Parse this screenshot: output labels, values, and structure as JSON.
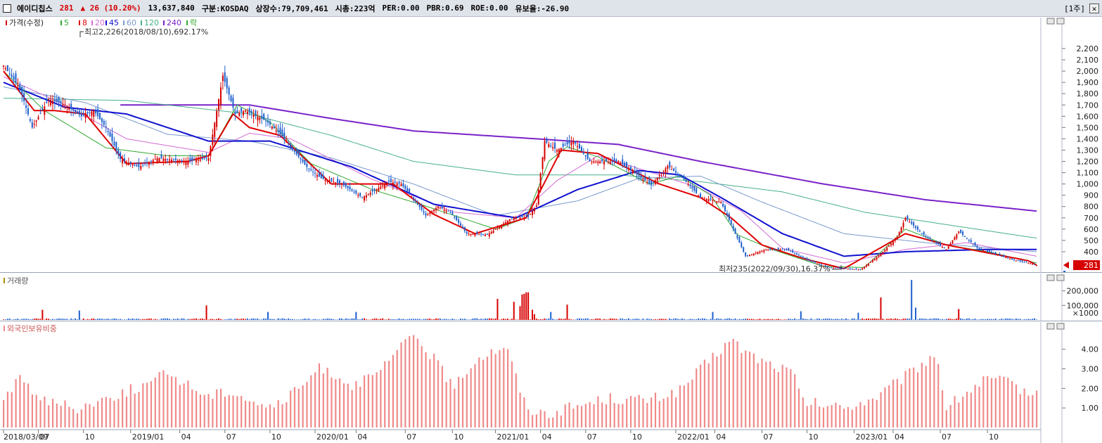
{
  "header": {
    "name": "에이디칩스",
    "price": "281",
    "change": "▲ 26 (10.20%)",
    "volume": "13,637,840",
    "market": "구분:KOSDAQ",
    "shares": "상장수:79,709,461",
    "mcap": "시총:223억",
    "per": "PER:0.00",
    "pbr": "PBR:0.69",
    "roe": "ROE:0.00",
    "retention": "유보율:-26.90",
    "period": "[1주]",
    "close": "✕"
  },
  "colors": {
    "up": "#d60000",
    "down": "#1e5fcc",
    "ma5": "#2fa82f",
    "ma8": "#e00000",
    "ma20": "#d36bd3",
    "ma45": "#1010d0",
    "ma60": "#7a9acb",
    "ma120": "#47b08a",
    "ma240": "#7a22c8",
    "foreign": "#f08a8a"
  },
  "chart_data": [
    {
      "type": "candlestick",
      "title": "가격(수정)",
      "legend": [
        "가격(수정)",
        "5",
        "8",
        "20",
        "45",
        "60",
        "120",
        "240",
        "락"
      ],
      "ylim": [
        0,
        2300
      ],
      "y_ticks": [
        "2,200",
        "2,100",
        "2,000",
        "1,900",
        "1,800",
        "1,700",
        "1,600",
        "1,500",
        "1,400",
        "1,300",
        "1,200",
        "1,100",
        "1,000",
        "900",
        "800",
        "700",
        "600",
        "500",
        "400"
      ],
      "annotations": {
        "high": "최고2,226(2018/08/10),692.17%",
        "low": "최저235(2022/09/30),16.37%"
      },
      "last": {
        "price": "281",
        "pct": "10.20%"
      },
      "anchors": {
        "close": [
          [
            0,
            2050
          ],
          [
            8,
            1850
          ],
          [
            14,
            1500
          ],
          [
            22,
            1750
          ],
          [
            30,
            1700
          ],
          [
            38,
            1600
          ],
          [
            44,
            1650
          ],
          [
            50,
            1500
          ],
          [
            57,
            1220
          ],
          [
            66,
            1150
          ],
          [
            75,
            1230
          ],
          [
            90,
            1200
          ],
          [
            100,
            1230
          ],
          [
            107,
            1960
          ],
          [
            113,
            1620
          ],
          [
            118,
            1650
          ],
          [
            128,
            1560
          ],
          [
            135,
            1440
          ],
          [
            148,
            1150
          ],
          [
            155,
            1050
          ],
          [
            165,
            1000
          ],
          [
            175,
            880
          ],
          [
            188,
            1020
          ],
          [
            194,
            1000
          ],
          [
            200,
            870
          ],
          [
            206,
            720
          ],
          [
            212,
            800
          ],
          [
            218,
            750
          ],
          [
            226,
            560
          ],
          [
            236,
            550
          ],
          [
            248,
            700
          ],
          [
            256,
            710
          ],
          [
            260,
            810
          ],
          [
            264,
            1380
          ],
          [
            270,
            1300
          ],
          [
            278,
            1380
          ],
          [
            286,
            1200
          ],
          [
            300,
            1200
          ],
          [
            316,
            990
          ],
          [
            324,
            1160
          ],
          [
            332,
            1040
          ],
          [
            340,
            880
          ],
          [
            350,
            840
          ],
          [
            362,
            360
          ],
          [
            372,
            420
          ],
          [
            382,
            420
          ],
          [
            392,
            330
          ],
          [
            402,
            260
          ],
          [
            410,
            250
          ],
          [
            418,
            240
          ],
          [
            428,
            380
          ],
          [
            436,
            530
          ],
          [
            440,
            700
          ],
          [
            448,
            560
          ],
          [
            460,
            420
          ],
          [
            466,
            580
          ],
          [
            476,
            420
          ],
          [
            484,
            380
          ],
          [
            492,
            330
          ],
          [
            500,
            300
          ],
          [
            504,
            281
          ]
        ],
        "ma5": [
          [
            0,
            2000
          ],
          [
            20,
            1650
          ],
          [
            50,
            1320
          ],
          [
            80,
            1250
          ],
          [
            100,
            1250
          ],
          [
            114,
            1700
          ],
          [
            130,
            1550
          ],
          [
            150,
            1180
          ],
          [
            180,
            950
          ],
          [
            205,
            810
          ],
          [
            240,
            600
          ],
          [
            255,
            700
          ],
          [
            266,
            1200
          ],
          [
            275,
            1330
          ],
          [
            290,
            1240
          ],
          [
            315,
            1000
          ],
          [
            330,
            1070
          ],
          [
            345,
            900
          ],
          [
            358,
            550
          ],
          [
            375,
            420
          ],
          [
            400,
            270
          ],
          [
            420,
            260
          ],
          [
            440,
            600
          ],
          [
            460,
            460
          ],
          [
            480,
            400
          ],
          [
            504,
            300
          ]
        ],
        "ma8": [
          [
            0,
            2000
          ],
          [
            15,
            1650
          ],
          [
            25,
            1650
          ],
          [
            40,
            1620
          ],
          [
            60,
            1180
          ],
          [
            90,
            1200
          ],
          [
            100,
            1250
          ],
          [
            112,
            1620
          ],
          [
            120,
            1500
          ],
          [
            135,
            1430
          ],
          [
            160,
            1000
          ],
          [
            190,
            1000
          ],
          [
            210,
            730
          ],
          [
            230,
            560
          ],
          [
            255,
            700
          ],
          [
            265,
            1050
          ],
          [
            272,
            1300
          ],
          [
            290,
            1270
          ],
          [
            320,
            1000
          ],
          [
            340,
            880
          ],
          [
            355,
            700
          ],
          [
            370,
            460
          ],
          [
            390,
            340
          ],
          [
            410,
            250
          ],
          [
            440,
            560
          ],
          [
            460,
            460
          ],
          [
            480,
            390
          ],
          [
            500,
            320
          ],
          [
            504,
            281
          ]
        ],
        "ma20": [
          [
            0,
            1950
          ],
          [
            30,
            1700
          ],
          [
            60,
            1400
          ],
          [
            100,
            1280
          ],
          [
            120,
            1450
          ],
          [
            140,
            1400
          ],
          [
            180,
            1040
          ],
          [
            220,
            750
          ],
          [
            250,
            700
          ],
          [
            270,
            1030
          ],
          [
            290,
            1250
          ],
          [
            320,
            1080
          ],
          [
            340,
            960
          ],
          [
            360,
            760
          ],
          [
            380,
            430
          ],
          [
            410,
            300
          ],
          [
            440,
            420
          ],
          [
            470,
            480
          ],
          [
            504,
            360
          ]
        ],
        "ma45": [
          [
            0,
            1900
          ],
          [
            30,
            1680
          ],
          [
            60,
            1620
          ],
          [
            100,
            1380
          ],
          [
            130,
            1380
          ],
          [
            170,
            1150
          ],
          [
            210,
            820
          ],
          [
            250,
            700
          ],
          [
            280,
            950
          ],
          [
            310,
            1120
          ],
          [
            330,
            1080
          ],
          [
            350,
            880
          ],
          [
            380,
            560
          ],
          [
            410,
            360
          ],
          [
            440,
            400
          ],
          [
            480,
            420
          ],
          [
            504,
            420
          ]
        ],
        "ma60": [
          [
            0,
            1860
          ],
          [
            40,
            1720
          ],
          [
            80,
            1440
          ],
          [
            120,
            1380
          ],
          [
            160,
            1230
          ],
          [
            200,
            1000
          ],
          [
            240,
            720
          ],
          [
            280,
            850
          ],
          [
            310,
            1050
          ],
          [
            340,
            1070
          ],
          [
            370,
            840
          ],
          [
            410,
            560
          ],
          [
            450,
            480
          ],
          [
            504,
            400
          ]
        ],
        "ma120": [
          [
            0,
            1760
          ],
          [
            60,
            1740
          ],
          [
            120,
            1620
          ],
          [
            160,
            1430
          ],
          [
            200,
            1200
          ],
          [
            250,
            1080
          ],
          [
            300,
            1080
          ],
          [
            340,
            1020
          ],
          [
            380,
            930
          ],
          [
            420,
            750
          ],
          [
            460,
            640
          ],
          [
            504,
            520
          ]
        ],
        "ma240": [
          [
            57,
            1700
          ],
          [
            120,
            1700
          ],
          [
            160,
            1580
          ],
          [
            200,
            1470
          ],
          [
            260,
            1400
          ],
          [
            300,
            1350
          ],
          [
            340,
            1200
          ],
          [
            400,
            1000
          ],
          [
            450,
            860
          ],
          [
            504,
            760
          ]
        ]
      }
    },
    {
      "type": "bar",
      "title": "거래량",
      "y_ticks": [
        "200,000",
        "100,000"
      ],
      "unit": "×1000",
      "ylim": [
        0,
        300000
      ],
      "spikes": [
        [
          19,
          70000
        ],
        [
          37,
          65000
        ],
        [
          99,
          100000
        ],
        [
          129,
          55000
        ],
        [
          172,
          55000
        ],
        [
          241,
          145000
        ],
        [
          249,
          125000
        ],
        [
          252,
          95000
        ],
        [
          253,
          175000
        ],
        [
          254,
          180000
        ],
        [
          255,
          190000
        ],
        [
          256,
          190000
        ],
        [
          258,
          70000
        ],
        [
          259,
          40000
        ],
        [
          267,
          55000
        ],
        [
          275,
          105000
        ],
        [
          346,
          55000
        ],
        [
          389,
          60000
        ],
        [
          417,
          50000
        ],
        [
          428,
          155000
        ],
        [
          443,
          275000
        ],
        [
          445,
          85000
        ],
        [
          466,
          75000
        ]
      ]
    },
    {
      "type": "bar",
      "title": "외국인보유비중",
      "y_ticks": [
        "4.00",
        "3.00",
        "2.00",
        "1.00"
      ],
      "ylim": [
        0,
        5.1
      ],
      "anchors": [
        [
          0,
          1.5
        ],
        [
          8,
          2.5
        ],
        [
          20,
          1.4
        ],
        [
          35,
          1.0
        ],
        [
          50,
          1.5
        ],
        [
          70,
          2.2
        ],
        [
          80,
          2.8
        ],
        [
          100,
          1.6
        ],
        [
          110,
          1.9
        ],
        [
          130,
          1.0
        ],
        [
          140,
          1.6
        ],
        [
          155,
          3.1
        ],
        [
          170,
          2.2
        ],
        [
          180,
          2.5
        ],
        [
          195,
          4.2
        ],
        [
          200,
          4.8
        ],
        [
          210,
          3.5
        ],
        [
          220,
          2.0
        ],
        [
          230,
          3.5
        ],
        [
          245,
          4.2
        ],
        [
          255,
          1.0
        ],
        [
          265,
          0.7
        ],
        [
          275,
          1.0
        ],
        [
          295,
          1.5
        ],
        [
          315,
          1.4
        ],
        [
          330,
          1.9
        ],
        [
          345,
          3.5
        ],
        [
          355,
          4.5
        ],
        [
          360,
          4.0
        ],
        [
          370,
          3.4
        ],
        [
          385,
          2.8
        ],
        [
          390,
          1.3
        ],
        [
          410,
          1.0
        ],
        [
          425,
          1.5
        ],
        [
          440,
          2.6
        ],
        [
          455,
          3.8
        ],
        [
          460,
          1.0
        ],
        [
          470,
          1.8
        ],
        [
          480,
          2.5
        ],
        [
          490,
          2.3
        ],
        [
          504,
          1.6
        ]
      ]
    }
  ],
  "x_axis": {
    "labels": [
      "2018/03/09",
      "07",
      "10",
      "2019/01",
      "04",
      "07",
      "10",
      "2020/01",
      "04",
      "07",
      "10",
      "2021/01",
      "04",
      "07",
      "10",
      "2022/01",
      "04",
      "07",
      "10",
      "2023/01",
      "04",
      "07",
      "10"
    ],
    "positions": [
      0,
      17,
      39,
      62,
      86,
      108,
      130,
      152,
      172,
      196,
      219,
      240,
      262,
      284,
      306,
      328,
      347,
      370,
      392,
      415,
      434,
      457,
      480
    ]
  }
}
